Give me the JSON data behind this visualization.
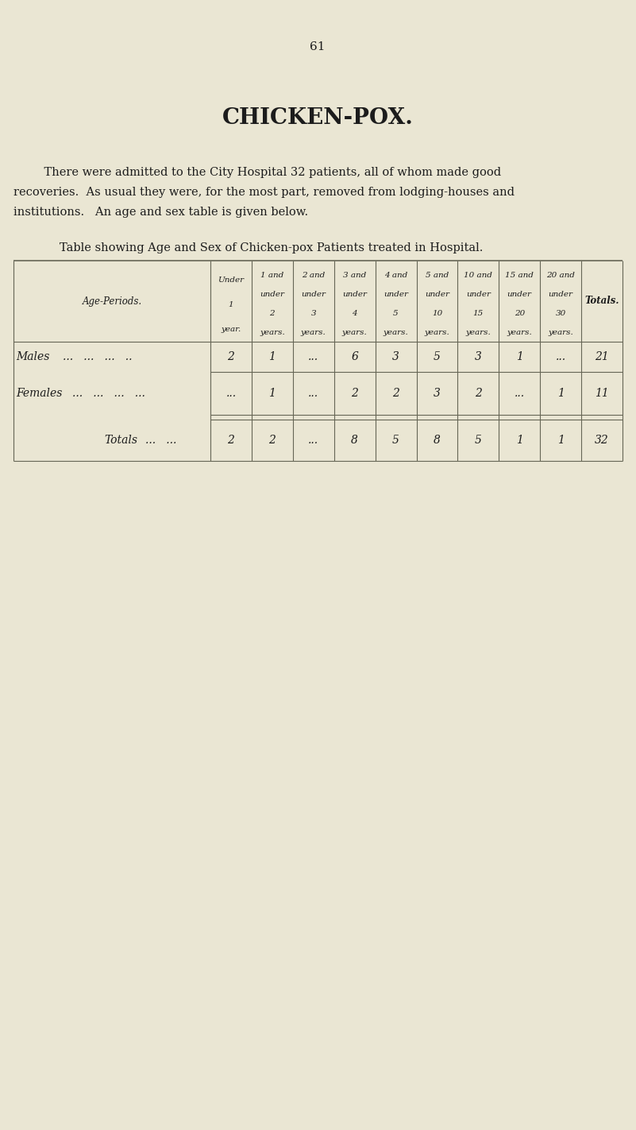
{
  "page_number": "61",
  "title": "CHICKEN-POX.",
  "body_text_line1": "    There were admitted to the City Hospital 32 patients, all of whom made good",
  "body_text_line2": "recoveries.  As usual they were, for the most part, removed from lodging-houses and",
  "body_text_line3": "institutions.   An age and sex table is given below.",
  "table_caption": "Table showing Age and Sex of Chicken-pox Patients treated in Hospital.",
  "row_label_header": "Age-Periods.",
  "col_headers": [
    [
      "Under",
      "1",
      "year."
    ],
    [
      "1 and",
      "under",
      "2",
      "years."
    ],
    [
      "2 and",
      "under",
      "3",
      "years."
    ],
    [
      "3 and",
      "under",
      "4",
      "years."
    ],
    [
      "4 and",
      "under",
      "5",
      "years."
    ],
    [
      "5 and",
      "under",
      "10",
      "years."
    ],
    [
      "10 and",
      "under",
      "15",
      "years."
    ],
    [
      "15 and",
      "under",
      "20",
      "years."
    ],
    [
      "20 and",
      "under",
      "30",
      "years."
    ],
    [
      "Totals."
    ]
  ],
  "males_label": "Males",
  "males_dots": "...   ...   ...   ..",
  "males_values": [
    "2",
    "1",
    "...",
    "6",
    "3",
    "5",
    "3",
    "1",
    "...",
    "21"
  ],
  "females_label": "Females",
  "females_dots": "...   ...   ...   ...",
  "females_values": [
    "...",
    "1",
    "...",
    "2",
    "2",
    "3",
    "2",
    "...",
    "1",
    "11"
  ],
  "totals_label": "Totals",
  "totals_dots": "...   ...",
  "totals_values": [
    "2",
    "2",
    "...",
    "8",
    "5",
    "8",
    "5",
    "1",
    "1",
    "32"
  ],
  "bg_color": "#eae6d3",
  "text_color": "#1c1c1c",
  "line_color": "#666655"
}
